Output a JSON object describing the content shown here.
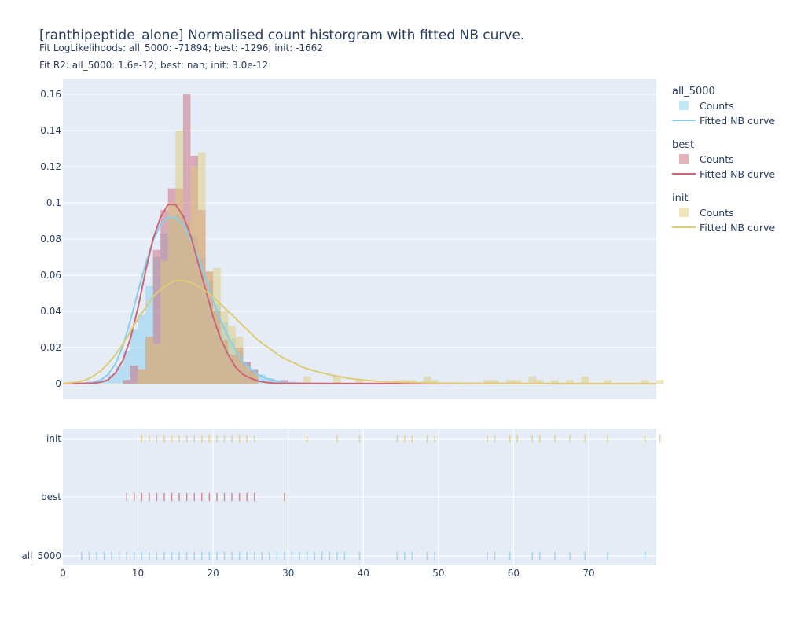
{
  "chart_data": {
    "type": "histogram",
    "title": "[ranthipeptide_alone] Normalised count historgram with fitted NB curve.",
    "subtitle_1": "Fit LogLikelihoods: all_5000: -71894; best: -1296; init: -1662",
    "subtitle_2": "Fit R2: all_5000: 1.6e-12; best: nan; init: 3.0e-12",
    "x_range": [
      0,
      79
    ],
    "y_range": [
      -0.009,
      0.16
    ],
    "x_ticks": [
      0,
      10,
      20,
      30,
      40,
      50,
      60,
      70
    ],
    "y_ticks": [
      0,
      0.02,
      0.04,
      0.06,
      0.08,
      0.1,
      0.12,
      0.14,
      0.16
    ],
    "y_tick_labels": [
      "0",
      "0.02",
      "0.04",
      "0.06",
      "0.08",
      "0.1",
      "0.12",
      "0.14",
      "0.16"
    ],
    "rug_categories": [
      "init",
      "best",
      "all_5000"
    ],
    "legend_placement": "right",
    "series": [
      {
        "name": "all_5000",
        "color": "#87ceeb",
        "labels": {
          "group": "all_5000",
          "counts": "Counts",
          "curve": "Fitted NB curve"
        },
        "counts": [
          [
            2,
            0.0003
          ],
          [
            3,
            0.0006
          ],
          [
            4,
            0.001
          ],
          [
            5,
            0.0025
          ],
          [
            6,
            0.005
          ],
          [
            7,
            0.01
          ],
          [
            8,
            0.018
          ],
          [
            9,
            0.03
          ],
          [
            10,
            0.038
          ],
          [
            11,
            0.054
          ],
          [
            12,
            0.07
          ],
          [
            13,
            0.083
          ],
          [
            14,
            0.092
          ],
          [
            15,
            0.094
          ],
          [
            16,
            0.09
          ],
          [
            17,
            0.082
          ],
          [
            18,
            0.07
          ],
          [
            19,
            0.057
          ],
          [
            20,
            0.044
          ],
          [
            21,
            0.034
          ],
          [
            22,
            0.025
          ],
          [
            23,
            0.018
          ],
          [
            24,
            0.012
          ],
          [
            25,
            0.008
          ],
          [
            26,
            0.005
          ],
          [
            27,
            0.003
          ],
          [
            28,
            0.002
          ],
          [
            29,
            0.0012
          ],
          [
            30,
            0.0008
          ],
          [
            31,
            0.0005
          ],
          [
            32,
            0.0003
          ],
          [
            33,
            0.0002
          ],
          [
            34,
            0.0001
          ],
          [
            35,
            0.0001
          ],
          [
            36,
            5e-05
          ]
        ],
        "curve": [
          [
            0,
            0
          ],
          [
            2,
            0.0001
          ],
          [
            3,
            0.0003
          ],
          [
            4,
            0.0008
          ],
          [
            5,
            0.002
          ],
          [
            6,
            0.005
          ],
          [
            7,
            0.011
          ],
          [
            8,
            0.021
          ],
          [
            9,
            0.035
          ],
          [
            10,
            0.051
          ],
          [
            11,
            0.066
          ],
          [
            12,
            0.079
          ],
          [
            13,
            0.088
          ],
          [
            14,
            0.092
          ],
          [
            15,
            0.092
          ],
          [
            16,
            0.088
          ],
          [
            17,
            0.08
          ],
          [
            18,
            0.07
          ],
          [
            19,
            0.058
          ],
          [
            20,
            0.046
          ],
          [
            21,
            0.035
          ],
          [
            22,
            0.026
          ],
          [
            23,
            0.018
          ],
          [
            24,
            0.012
          ],
          [
            25,
            0.008
          ],
          [
            26,
            0.005
          ],
          [
            27,
            0.003
          ],
          [
            28,
            0.002
          ],
          [
            29,
            0.001
          ],
          [
            30,
            0.0006
          ],
          [
            32,
            0.0002
          ],
          [
            35,
            5e-05
          ],
          [
            40,
            0
          ],
          [
            79,
            0
          ]
        ],
        "rug": [
          2,
          3,
          4,
          5,
          6,
          7,
          8,
          9,
          10,
          11,
          12,
          13,
          14,
          15,
          16,
          17,
          18,
          19,
          20,
          21,
          22,
          23,
          24,
          25,
          26,
          27,
          28,
          29,
          30,
          31,
          32,
          33,
          34,
          35,
          36,
          37,
          39,
          44,
          45,
          46,
          48,
          49,
          56,
          57,
          59,
          62,
          63,
          65,
          67,
          69,
          72,
          77
        ]
      },
      {
        "name": "best",
        "color": "#cc6677",
        "labels": {
          "group": "best",
          "counts": "Counts",
          "curve": "Fitted NB curve"
        },
        "counts": [
          [
            8,
            0.002
          ],
          [
            9,
            0.01
          ],
          [
            10,
            0.008
          ],
          [
            11,
            0.026
          ],
          [
            12,
            0.074
          ],
          [
            13,
            0.096
          ],
          [
            14,
            0.108
          ],
          [
            15,
            0.108
          ],
          [
            16,
            0.16
          ],
          [
            17,
            0.126
          ],
          [
            18,
            0.096
          ],
          [
            19,
            0.062
          ],
          [
            20,
            0.04
          ],
          [
            21,
            0.024
          ],
          [
            22,
            0.016
          ],
          [
            23,
            0.02
          ],
          [
            24,
            0.012
          ],
          [
            25,
            0.008
          ],
          [
            29,
            0.002
          ]
        ],
        "curve": [
          [
            0,
            0
          ],
          [
            4,
            0.0002
          ],
          [
            5,
            0.0008
          ],
          [
            6,
            0.002
          ],
          [
            7,
            0.006
          ],
          [
            8,
            0.013
          ],
          [
            9,
            0.025
          ],
          [
            10,
            0.042
          ],
          [
            11,
            0.062
          ],
          [
            12,
            0.08
          ],
          [
            13,
            0.092
          ],
          [
            14,
            0.099
          ],
          [
            15,
            0.099
          ],
          [
            16,
            0.093
          ],
          [
            17,
            0.082
          ],
          [
            18,
            0.067
          ],
          [
            19,
            0.052
          ],
          [
            20,
            0.037
          ],
          [
            21,
            0.025
          ],
          [
            22,
            0.016
          ],
          [
            23,
            0.009
          ],
          [
            24,
            0.005
          ],
          [
            25,
            0.003
          ],
          [
            26,
            0.0015
          ],
          [
            27,
            0.0007
          ],
          [
            28,
            0.0003
          ],
          [
            30,
            0.0001
          ],
          [
            79,
            0
          ]
        ],
        "rug": [
          8,
          9,
          10,
          11,
          12,
          13,
          14,
          15,
          16,
          17,
          18,
          19,
          20,
          21,
          22,
          23,
          24,
          25,
          29
        ]
      },
      {
        "name": "init",
        "color": "#ddcc77",
        "labels": {
          "group": "init",
          "counts": "Counts",
          "curve": "Fitted NB curve"
        },
        "counts": [
          [
            10,
            0.008
          ],
          [
            11,
            0.026
          ],
          [
            12,
            0.022
          ],
          [
            13,
            0.068
          ],
          [
            14,
            0.1
          ],
          [
            15,
            0.14
          ],
          [
            16,
            0.09
          ],
          [
            17,
            0.12
          ],
          [
            18,
            0.128
          ],
          [
            19,
            0.062
          ],
          [
            20,
            0.064
          ],
          [
            21,
            0.04
          ],
          [
            22,
            0.032
          ],
          [
            23,
            0.026
          ],
          [
            24,
            0.01
          ],
          [
            25,
            0.006
          ],
          [
            32,
            0.004
          ],
          [
            36,
            0.004
          ],
          [
            39,
            0.002
          ],
          [
            44,
            0.002
          ],
          [
            45,
            0.002
          ],
          [
            46,
            0.002
          ],
          [
            48,
            0.004
          ],
          [
            49,
            0.002
          ],
          [
            56,
            0.002
          ],
          [
            57,
            0.002
          ],
          [
            59,
            0.002
          ],
          [
            60,
            0.002
          ],
          [
            62,
            0.004
          ],
          [
            63,
            0.002
          ],
          [
            65,
            0.002
          ],
          [
            67,
            0.002
          ],
          [
            69,
            0.004
          ],
          [
            72,
            0.002
          ],
          [
            77,
            0.002
          ],
          [
            79,
            0.002
          ]
        ],
        "curve": [
          [
            0,
            0.0002
          ],
          [
            1,
            0.0005
          ],
          [
            2,
            0.001
          ],
          [
            3,
            0.002
          ],
          [
            4,
            0.004
          ],
          [
            5,
            0.007
          ],
          [
            6,
            0.011
          ],
          [
            7,
            0.016
          ],
          [
            8,
            0.022
          ],
          [
            9,
            0.029
          ],
          [
            10,
            0.036
          ],
          [
            11,
            0.042
          ],
          [
            12,
            0.048
          ],
          [
            13,
            0.052
          ],
          [
            14,
            0.055
          ],
          [
            15,
            0.057
          ],
          [
            16,
            0.057
          ],
          [
            17,
            0.056
          ],
          [
            18,
            0.054
          ],
          [
            19,
            0.051
          ],
          [
            20,
            0.048
          ],
          [
            21,
            0.044
          ],
          [
            22,
            0.04
          ],
          [
            23,
            0.036
          ],
          [
            24,
            0.032
          ],
          [
            25,
            0.028
          ],
          [
            26,
            0.024
          ],
          [
            27,
            0.021
          ],
          [
            28,
            0.018
          ],
          [
            29,
            0.015
          ],
          [
            30,
            0.013
          ],
          [
            31,
            0.011
          ],
          [
            32,
            0.009
          ],
          [
            34,
            0.0065
          ],
          [
            36,
            0.0045
          ],
          [
            38,
            0.003
          ],
          [
            40,
            0.002
          ],
          [
            42,
            0.0013
          ],
          [
            45,
            0.0008
          ],
          [
            50,
            0.0003
          ],
          [
            55,
            0.0001
          ],
          [
            60,
            5e-05
          ],
          [
            79,
            0
          ]
        ],
        "rug": [
          10,
          11,
          12,
          13,
          14,
          15,
          16,
          17,
          18,
          19,
          20,
          21,
          22,
          23,
          24,
          25,
          32,
          36,
          39,
          44,
          45,
          46,
          48,
          49,
          56,
          57,
          59,
          60,
          62,
          63,
          65,
          67,
          69,
          72,
          77,
          79
        ]
      }
    ]
  }
}
